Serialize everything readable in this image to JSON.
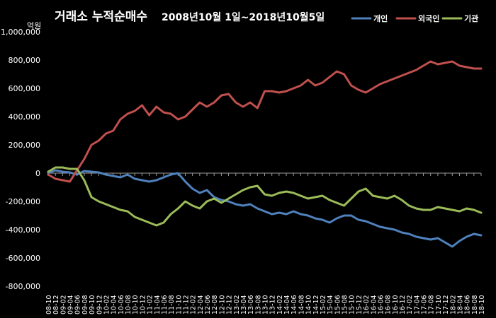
{
  "chart_data": {
    "type": "line",
    "title": "거래소 누적순매수",
    "subtitle": "2008년10월 1일~2018년10월5일",
    "y_unit": "억원",
    "ylim": [
      -800000,
      1000000
    ],
    "y_ticks": [
      1000000,
      800000,
      600000,
      400000,
      200000,
      0,
      -200000,
      -400000,
      -600000,
      -800000
    ],
    "y_tick_labels": [
      "1,000,000",
      "800,000",
      "600,000",
      "400,000",
      "200,000",
      "0",
      "-200,000",
      "-400,000",
      "-600,000",
      "-800,000"
    ],
    "x_tick_labels": [
      "08-10",
      "08-12",
      "09-02",
      "09-04",
      "09-06",
      "09-08",
      "09-10",
      "09-12",
      "10-02",
      "10-04",
      "10-06",
      "10-08",
      "10-10",
      "10-12",
      "11-02",
      "11-04",
      "11-06",
      "11-08",
      "11-10",
      "11-12",
      "12-02",
      "12-04",
      "12-06",
      "12-08",
      "12-10",
      "12-12",
      "13-02",
      "13-04",
      "13-06",
      "13-08",
      "13-10",
      "13-12",
      "14-02",
      "14-04",
      "14-06",
      "14-08",
      "14-10",
      "14-12",
      "15-02",
      "15-04",
      "15-06",
      "15-08",
      "15-10",
      "15-12",
      "16-02",
      "16-04",
      "16-06",
      "16-08",
      "16-10",
      "16-12",
      "17-02",
      "17-04",
      "17-06",
      "17-08",
      "17-10",
      "17-12",
      "18-02",
      "18-04",
      "18-06",
      "18-08",
      "18-10"
    ],
    "grid": false,
    "legend_position": "top-right",
    "series": [
      {
        "name": "개인",
        "color": "#4f81bd",
        "values": [
          0,
          20000,
          10000,
          5000,
          -10000,
          15000,
          10000,
          5000,
          -10000,
          -20000,
          -30000,
          -10000,
          -40000,
          -50000,
          -60000,
          -50000,
          -30000,
          -10000,
          0,
          -60000,
          -110000,
          -140000,
          -120000,
          -170000,
          -190000,
          -200000,
          -220000,
          -230000,
          -220000,
          -250000,
          -270000,
          -290000,
          -280000,
          -290000,
          -270000,
          -290000,
          -300000,
          -320000,
          -330000,
          -350000,
          -320000,
          -300000,
          -300000,
          -330000,
          -340000,
          -360000,
          -380000,
          -390000,
          -400000,
          -420000,
          -430000,
          -450000,
          -460000,
          -470000,
          -460000,
          -490000,
          -520000,
          -480000,
          -450000,
          -430000,
          -440000
        ]
      },
      {
        "name": "외국인",
        "color": "#c0504d",
        "values": [
          -10000,
          -40000,
          -50000,
          -60000,
          20000,
          100000,
          200000,
          230000,
          280000,
          300000,
          380000,
          420000,
          440000,
          480000,
          410000,
          470000,
          430000,
          420000,
          380000,
          400000,
          450000,
          500000,
          470000,
          500000,
          550000,
          560000,
          500000,
          470000,
          500000,
          460000,
          580000,
          580000,
          570000,
          580000,
          600000,
          620000,
          660000,
          620000,
          640000,
          680000,
          720000,
          700000,
          620000,
          590000,
          570000,
          600000,
          630000,
          650000,
          670000,
          690000,
          710000,
          730000,
          760000,
          790000,
          770000,
          780000,
          790000,
          760000,
          750000,
          740000,
          740000
        ]
      },
      {
        "name": "기관",
        "color": "#9bbb59",
        "values": [
          10000,
          40000,
          40000,
          30000,
          30000,
          -50000,
          -170000,
          -200000,
          -220000,
          -240000,
          -260000,
          -270000,
          -310000,
          -330000,
          -350000,
          -370000,
          -350000,
          -290000,
          -250000,
          -200000,
          -230000,
          -250000,
          -200000,
          -180000,
          -210000,
          -180000,
          -150000,
          -120000,
          -100000,
          -90000,
          -150000,
          -160000,
          -140000,
          -130000,
          -140000,
          -160000,
          -180000,
          -170000,
          -160000,
          -190000,
          -210000,
          -230000,
          -180000,
          -130000,
          -110000,
          -160000,
          -170000,
          -180000,
          -160000,
          -190000,
          -230000,
          -250000,
          -260000,
          -260000,
          -240000,
          -250000,
          -260000,
          -270000,
          -250000,
          -260000,
          -280000
        ]
      }
    ]
  }
}
